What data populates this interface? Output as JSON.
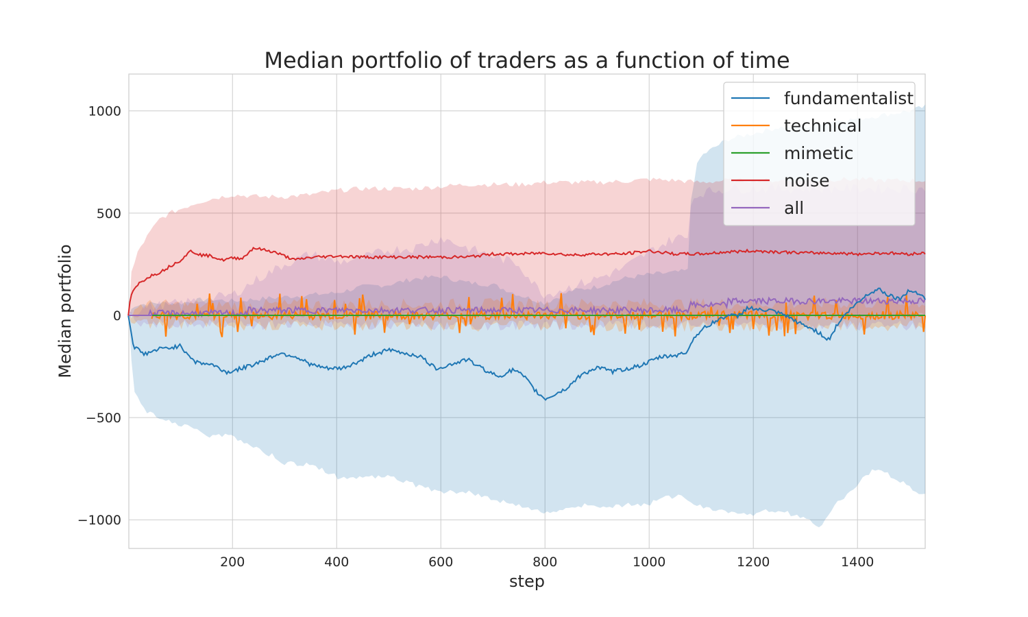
{
  "chart_data": {
    "type": "line",
    "title": "Median portfolio of traders as a function of time",
    "xlabel": "step",
    "ylabel": "Median portfolio",
    "xlim": [
      1,
      1530
    ],
    "ylim": [
      -1140,
      1180
    ],
    "xticks": [
      200,
      400,
      600,
      800,
      1000,
      1200,
      1400
    ],
    "xtick_labels": [
      "200",
      "400",
      "600",
      "800",
      "1000",
      "1200",
      "1400"
    ],
    "yticks": [
      -1000,
      -500,
      0,
      500,
      1000
    ],
    "ytick_labels": [
      "−1000",
      "−500",
      "0",
      "500",
      "1000"
    ],
    "grid": true,
    "legend_position": "top-right",
    "series": [
      {
        "name": "fundamentalist",
        "color": "#1f77b4",
        "median": [
          [
            0,
            0
          ],
          [
            10,
            -150
          ],
          [
            30,
            -190
          ],
          [
            60,
            -165
          ],
          [
            100,
            -150
          ],
          [
            130,
            -230
          ],
          [
            160,
            -240
          ],
          [
            190,
            -280
          ],
          [
            230,
            -250
          ],
          [
            260,
            -220
          ],
          [
            290,
            -185
          ],
          [
            320,
            -200
          ],
          [
            350,
            -240
          ],
          [
            380,
            -260
          ],
          [
            410,
            -260
          ],
          [
            440,
            -230
          ],
          [
            470,
            -190
          ],
          [
            500,
            -170
          ],
          [
            530,
            -185
          ],
          [
            560,
            -200
          ],
          [
            590,
            -260
          ],
          [
            620,
            -240
          ],
          [
            650,
            -215
          ],
          [
            680,
            -260
          ],
          [
            710,
            -300
          ],
          [
            740,
            -265
          ],
          [
            760,
            -300
          ],
          [
            780,
            -365
          ],
          [
            800,
            -410
          ],
          [
            820,
            -385
          ],
          [
            840,
            -360
          ],
          [
            870,
            -290
          ],
          [
            900,
            -255
          ],
          [
            930,
            -275
          ],
          [
            960,
            -260
          ],
          [
            990,
            -240
          ],
          [
            1020,
            -205
          ],
          [
            1050,
            -195
          ],
          [
            1070,
            -185
          ],
          [
            1090,
            -95
          ],
          [
            1110,
            -55
          ],
          [
            1130,
            -25
          ],
          [
            1150,
            0
          ],
          [
            1170,
            -5
          ],
          [
            1190,
            40
          ],
          [
            1210,
            25
          ],
          [
            1230,
            25
          ],
          [
            1260,
            0
          ],
          [
            1290,
            -40
          ],
          [
            1320,
            -75
          ],
          [
            1345,
            -120
          ],
          [
            1360,
            -50
          ],
          [
            1380,
            15
          ],
          [
            1400,
            60
          ],
          [
            1420,
            105
          ],
          [
            1440,
            130
          ],
          [
            1460,
            100
          ],
          [
            1480,
            80
          ],
          [
            1500,
            120
          ],
          [
            1520,
            110
          ],
          [
            1530,
            80
          ]
        ],
        "band_upper": [
          [
            0,
            0
          ],
          [
            10,
            50
          ],
          [
            50,
            60
          ],
          [
            100,
            60
          ],
          [
            150,
            80
          ],
          [
            200,
            70
          ],
          [
            250,
            80
          ],
          [
            300,
            90
          ],
          [
            350,
            100
          ],
          [
            400,
            110
          ],
          [
            450,
            140
          ],
          [
            500,
            150
          ],
          [
            550,
            180
          ],
          [
            600,
            190
          ],
          [
            650,
            160
          ],
          [
            700,
            150
          ],
          [
            750,
            100
          ],
          [
            800,
            60
          ],
          [
            850,
            120
          ],
          [
            900,
            140
          ],
          [
            950,
            180
          ],
          [
            1000,
            200
          ],
          [
            1050,
            210
          ],
          [
            1075,
            220
          ],
          [
            1080,
            560
          ],
          [
            1090,
            720
          ],
          [
            1100,
            780
          ],
          [
            1150,
            860
          ],
          [
            1200,
            890
          ],
          [
            1250,
            920
          ],
          [
            1300,
            920
          ],
          [
            1350,
            950
          ],
          [
            1400,
            960
          ],
          [
            1450,
            980
          ],
          [
            1500,
            1000
          ],
          [
            1530,
            1020
          ]
        ],
        "band_lower": [
          [
            0,
            0
          ],
          [
            10,
            -380
          ],
          [
            40,
            -480
          ],
          [
            80,
            -520
          ],
          [
            130,
            -560
          ],
          [
            160,
            -590
          ],
          [
            200,
            -590
          ],
          [
            250,
            -650
          ],
          [
            300,
            -720
          ],
          [
            350,
            -730
          ],
          [
            400,
            -790
          ],
          [
            450,
            -790
          ],
          [
            500,
            -790
          ],
          [
            550,
            -830
          ],
          [
            600,
            -860
          ],
          [
            650,
            -860
          ],
          [
            700,
            -900
          ],
          [
            750,
            -930
          ],
          [
            800,
            -970
          ],
          [
            850,
            -930
          ],
          [
            900,
            -930
          ],
          [
            950,
            -930
          ],
          [
            1000,
            -920
          ],
          [
            1050,
            -880
          ],
          [
            1100,
            -930
          ],
          [
            1150,
            -960
          ],
          [
            1200,
            -970
          ],
          [
            1250,
            -950
          ],
          [
            1300,
            -1000
          ],
          [
            1330,
            -1030
          ],
          [
            1360,
            -920
          ],
          [
            1400,
            -830
          ],
          [
            1430,
            -750
          ],
          [
            1460,
            -780
          ],
          [
            1500,
            -840
          ],
          [
            1530,
            -880
          ]
        ]
      },
      {
        "name": "technical",
        "color": "#ff7f0e",
        "median": [
          [
            0,
            0
          ],
          [
            1530,
            0
          ]
        ],
        "band_upper": [
          [
            0,
            0
          ],
          [
            20,
            50
          ],
          [
            1530,
            60
          ]
        ],
        "band_lower": [
          [
            0,
            0
          ],
          [
            20,
            -45
          ],
          [
            1530,
            -55
          ]
        ]
      },
      {
        "name": "mimetic",
        "color": "#2ca02c",
        "median": [
          [
            0,
            0
          ],
          [
            1530,
            0
          ]
        ]
      },
      {
        "name": "noise",
        "color": "#d62728",
        "median": [
          [
            0,
            0
          ],
          [
            5,
            100
          ],
          [
            20,
            155
          ],
          [
            40,
            190
          ],
          [
            60,
            210
          ],
          [
            80,
            240
          ],
          [
            100,
            270
          ],
          [
            120,
            315
          ],
          [
            140,
            295
          ],
          [
            160,
            290
          ],
          [
            180,
            270
          ],
          [
            200,
            280
          ],
          [
            220,
            280
          ],
          [
            240,
            330
          ],
          [
            260,
            320
          ],
          [
            280,
            310
          ],
          [
            300,
            290
          ],
          [
            320,
            270
          ],
          [
            340,
            280
          ],
          [
            360,
            285
          ],
          [
            400,
            290
          ],
          [
            450,
            285
          ],
          [
            500,
            285
          ],
          [
            550,
            285
          ],
          [
            600,
            285
          ],
          [
            650,
            285
          ],
          [
            700,
            300
          ],
          [
            750,
            300
          ],
          [
            800,
            305
          ],
          [
            850,
            295
          ],
          [
            900,
            300
          ],
          [
            950,
            300
          ],
          [
            1000,
            315
          ],
          [
            1050,
            300
          ],
          [
            1100,
            300
          ],
          [
            1150,
            310
          ],
          [
            1200,
            315
          ],
          [
            1250,
            310
          ],
          [
            1300,
            305
          ],
          [
            1350,
            305
          ],
          [
            1400,
            300
          ],
          [
            1450,
            305
          ],
          [
            1500,
            300
          ],
          [
            1530,
            305
          ]
        ],
        "band_upper": [
          [
            0,
            0
          ],
          [
            5,
            200
          ],
          [
            20,
            320
          ],
          [
            40,
            400
          ],
          [
            60,
            470
          ],
          [
            80,
            500
          ],
          [
            100,
            520
          ],
          [
            130,
            550
          ],
          [
            160,
            570
          ],
          [
            200,
            590
          ],
          [
            250,
            580
          ],
          [
            300,
            580
          ],
          [
            350,
            590
          ],
          [
            400,
            610
          ],
          [
            450,
            620
          ],
          [
            500,
            620
          ],
          [
            550,
            620
          ],
          [
            600,
            630
          ],
          [
            650,
            640
          ],
          [
            700,
            640
          ],
          [
            750,
            640
          ],
          [
            800,
            650
          ],
          [
            850,
            650
          ],
          [
            900,
            650
          ],
          [
            950,
            655
          ],
          [
            1000,
            665
          ],
          [
            1050,
            660
          ],
          [
            1100,
            650
          ],
          [
            1150,
            660
          ],
          [
            1200,
            660
          ],
          [
            1250,
            660
          ],
          [
            1300,
            660
          ],
          [
            1350,
            665
          ],
          [
            1400,
            665
          ],
          [
            1450,
            660
          ],
          [
            1500,
            660
          ],
          [
            1530,
            660
          ]
        ],
        "band_lower": [
          [
            0,
            0
          ],
          [
            1530,
            0
          ]
        ]
      },
      {
        "name": "all",
        "color": "#9467bd",
        "median": [
          [
            0,
            0
          ],
          [
            1530,
            0
          ]
        ],
        "band_upper": [
          [
            0,
            0
          ],
          [
            30,
            40
          ],
          [
            100,
            60
          ],
          [
            200,
            100
          ],
          [
            250,
            180
          ],
          [
            300,
            250
          ],
          [
            350,
            300
          ],
          [
            400,
            260
          ],
          [
            450,
            280
          ],
          [
            500,
            320
          ],
          [
            550,
            330
          ],
          [
            600,
            380
          ],
          [
            650,
            330
          ],
          [
            700,
            290
          ],
          [
            750,
            250
          ],
          [
            780,
            150
          ],
          [
            800,
            100
          ],
          [
            850,
            140
          ],
          [
            900,
            180
          ],
          [
            950,
            230
          ],
          [
            1000,
            310
          ],
          [
            1050,
            380
          ],
          [
            1075,
            380
          ],
          [
            1080,
            560
          ],
          [
            1100,
            600
          ],
          [
            1150,
            620
          ],
          [
            1200,
            620
          ],
          [
            1250,
            620
          ],
          [
            1300,
            620
          ],
          [
            1350,
            620
          ],
          [
            1400,
            620
          ],
          [
            1450,
            620
          ],
          [
            1500,
            620
          ],
          [
            1530,
            620
          ]
        ],
        "band_lower": [
          [
            0,
            0
          ],
          [
            30,
            -40
          ],
          [
            100,
            -50
          ],
          [
            200,
            -50
          ],
          [
            300,
            -45
          ],
          [
            400,
            -45
          ],
          [
            500,
            -45
          ],
          [
            600,
            -50
          ],
          [
            700,
            -50
          ],
          [
            800,
            -50
          ],
          [
            900,
            -45
          ],
          [
            1000,
            -45
          ],
          [
            1100,
            -45
          ],
          [
            1200,
            -50
          ],
          [
            1300,
            -50
          ],
          [
            1400,
            -50
          ],
          [
            1500,
            -50
          ],
          [
            1530,
            -50
          ]
        ]
      }
    ]
  }
}
